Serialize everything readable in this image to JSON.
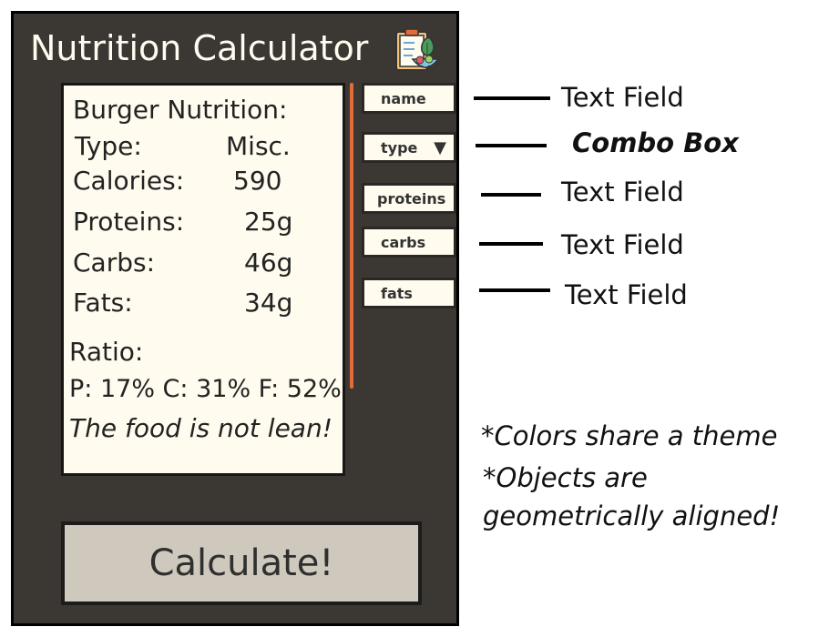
{
  "app": {
    "title": "Nutrition Calculator",
    "title_icon": "clipboard-salad-icon"
  },
  "result": {
    "heading": "Burger Nutrition:",
    "rows": [
      {
        "label": "Type:",
        "value": "Misc."
      },
      {
        "label": "Calories:",
        "value": "590"
      },
      {
        "label": "Proteins:",
        "value": "25g"
      },
      {
        "label": "Carbs:",
        "value": "46g"
      },
      {
        "label": "Fats:",
        "value": "34g"
      }
    ],
    "ratio_label": "Ratio:",
    "ratio_value": "P: 17% C: 31% F: 52%",
    "verdict": "The food is not lean!"
  },
  "inputs": {
    "name": "name",
    "type": "type",
    "proteins": "proteins",
    "carbs": "carbs",
    "fats": "fats"
  },
  "button": {
    "label": "Calculate!"
  },
  "annotations": {
    "name": "Text Field",
    "type": "Combo Box",
    "proteins": "Text Field",
    "carbs": "Text Field",
    "fats": "Text Field"
  },
  "notes": [
    "*Colors share a theme",
    "*Objects are",
    "geometrically aligned!"
  ],
  "colors": {
    "panel": "#3b3834",
    "cream": "#fffbee",
    "accent": "#e26b3a",
    "button": "#cfc8bc"
  }
}
